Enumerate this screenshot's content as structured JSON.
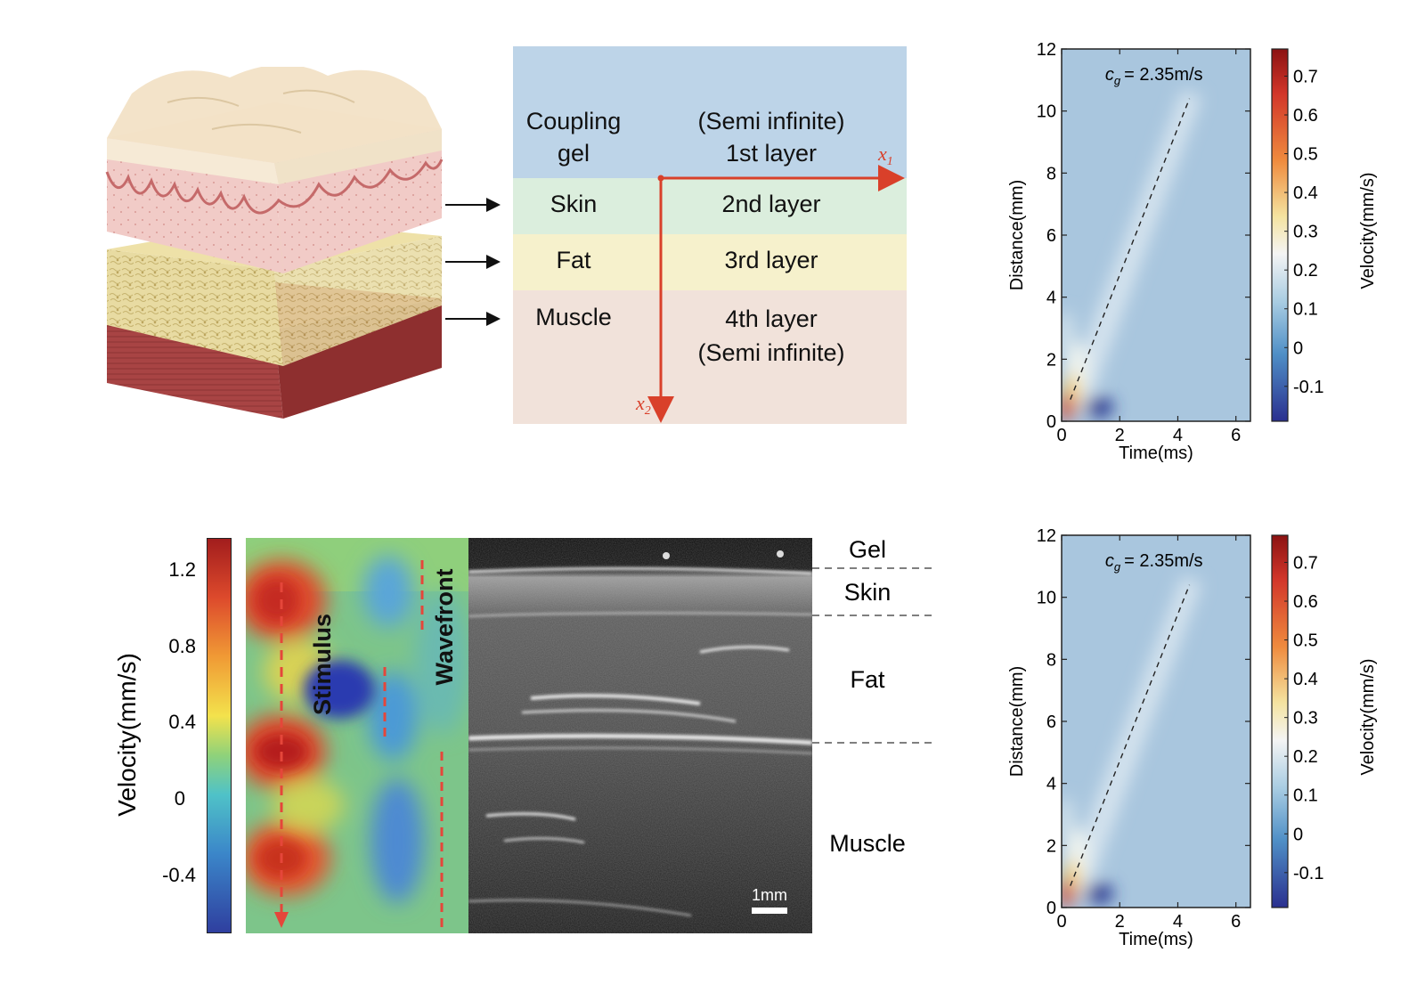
{
  "layer_table": {
    "rows": [
      {
        "tissue": [
          "Coupling",
          "gel"
        ],
        "layer": [
          "(Semi infinite)",
          "1st layer"
        ],
        "color": "#bdd4e8"
      },
      {
        "tissue": [
          "Skin"
        ],
        "layer": [
          "2nd layer"
        ],
        "color": "#dbeedd"
      },
      {
        "tissue": [
          "Fat"
        ],
        "layer": [
          "3rd layer"
        ],
        "color": "#f6f1cc"
      },
      {
        "tissue": [
          "Muscle"
        ],
        "layer": [
          "4th layer",
          "(Semi infinite)"
        ],
        "color": "#f1e2da"
      }
    ],
    "axis_x1": "x",
    "axis_x1_sub": "1",
    "axis_x2": "x",
    "axis_x2_sub": "2",
    "axis_color": "#d9402a"
  },
  "ultrasound": {
    "colorbar_label": "Velocity(mm/s)",
    "colorbar_ticks": [
      "1.2",
      "0.8",
      "0.4",
      "0",
      "-0.4"
    ],
    "stimulus_label": "Stimulus",
    "wavefront_label": "Wavefront",
    "scale_bar": "1mm",
    "tissue_labels": [
      "Gel",
      "Skin",
      "Fat",
      "Muscle"
    ]
  },
  "chart_data": [
    {
      "type": "heatmap",
      "title": "",
      "xlabel": "Time(ms)",
      "ylabel": "Distance(mm)",
      "colorbar_label": "Velocity(mm/s)",
      "xlim": [
        0,
        6.5
      ],
      "ylim": [
        0,
        12
      ],
      "x_ticks": [
        0,
        2,
        4,
        6
      ],
      "y_ticks": [
        0,
        2,
        4,
        6,
        8,
        10,
        12
      ],
      "colorbar_ticks": [
        0.7,
        0.6,
        0.5,
        0.4,
        0.3,
        0.2,
        0.1,
        0,
        -0.1
      ],
      "colorbar_range": [
        -0.19,
        0.77
      ],
      "annotation": "= 2.35m/s",
      "annotation_symbol": "c",
      "annotation_sub": "g",
      "fit_line": {
        "x": [
          0.3,
          4.4
        ],
        "y": [
          0.7,
          10.4
        ]
      }
    },
    {
      "type": "heatmap",
      "title": "",
      "xlabel": "Time(ms)",
      "ylabel": "Distance(mm)",
      "colorbar_label": "Velocity(mm/s)",
      "xlim": [
        0,
        6.5
      ],
      "ylim": [
        0,
        12
      ],
      "x_ticks": [
        0,
        2,
        4,
        6
      ],
      "y_ticks": [
        0,
        2,
        4,
        6,
        8,
        10,
        12
      ],
      "colorbar_ticks": [
        0.7,
        0.6,
        0.5,
        0.4,
        0.3,
        0.2,
        0.1,
        0,
        -0.1
      ],
      "colorbar_range": [
        -0.19,
        0.77
      ],
      "annotation": "= 2.35m/s",
      "annotation_symbol": "c",
      "annotation_sub": "g",
      "fit_line": {
        "x": [
          0.3,
          4.4
        ],
        "y": [
          0.7,
          10.4
        ]
      }
    }
  ]
}
